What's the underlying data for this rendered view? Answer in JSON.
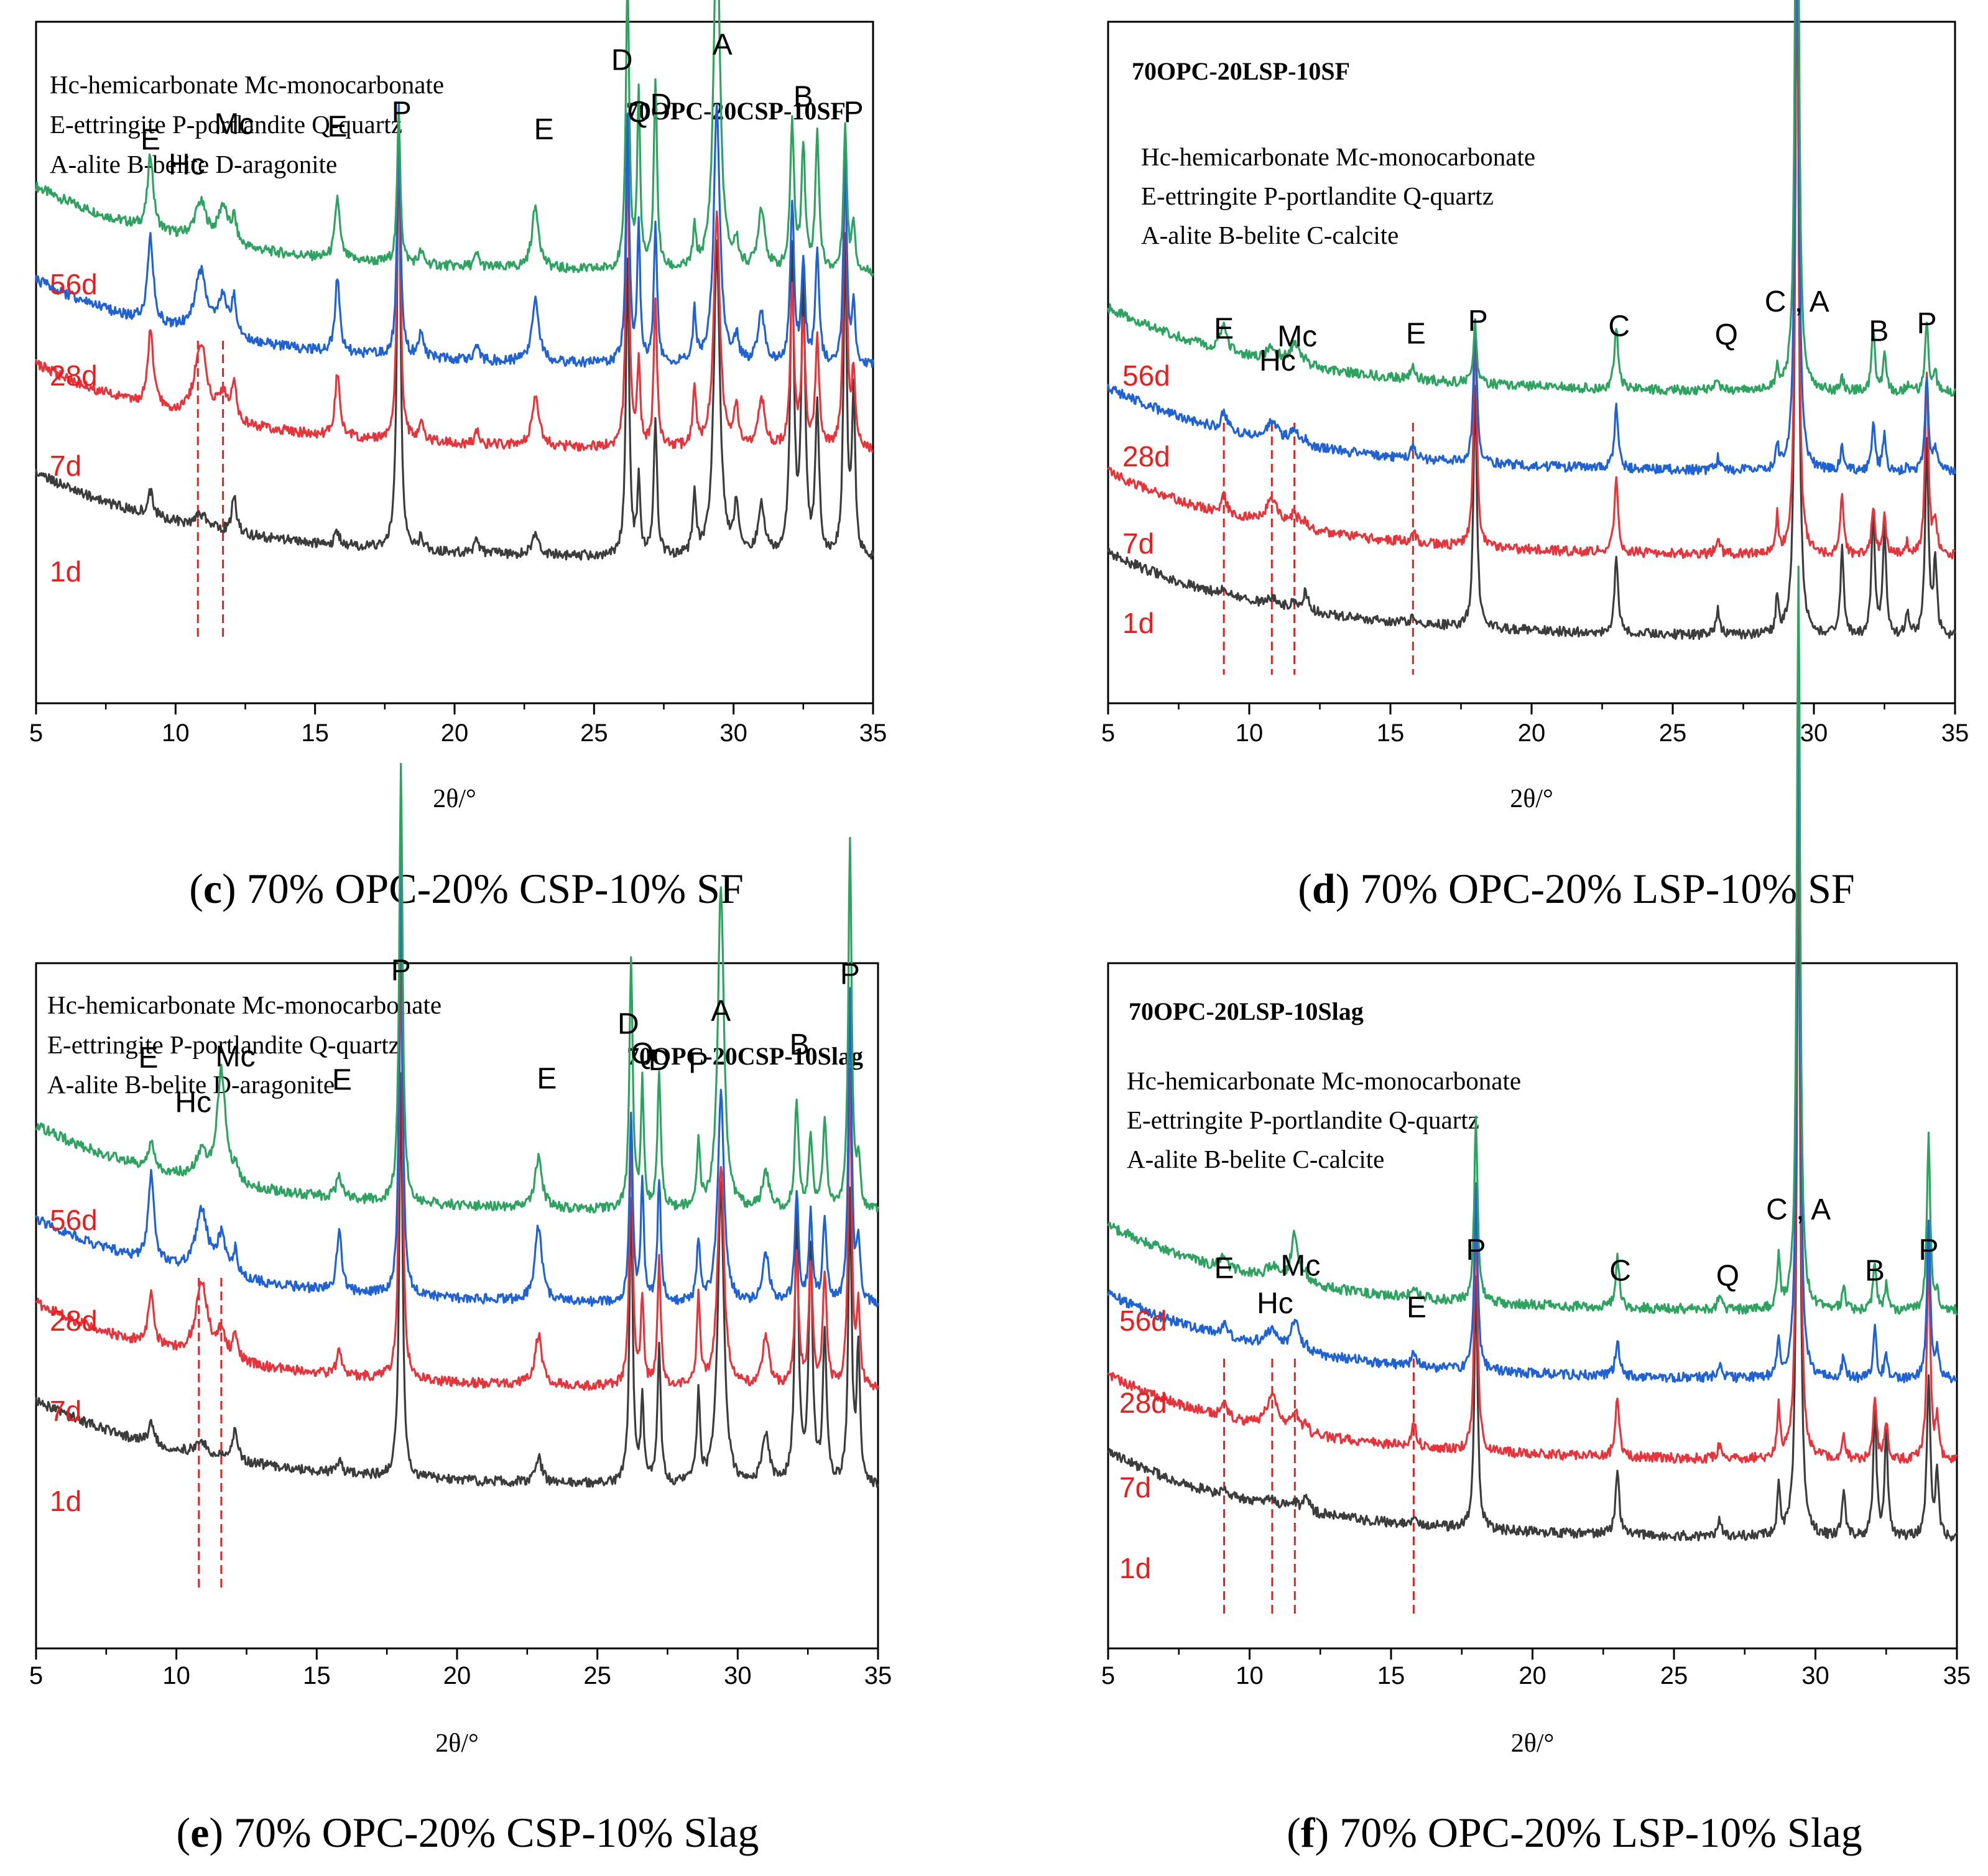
{
  "colors": {
    "d56": "#2ca35f",
    "d28": "#1e62d6",
    "d7": "#e8333a",
    "d1": "#3c3c3c",
    "age_label": "#ee1c1c",
    "marker": "#dd2222"
  },
  "chart_data": [
    {
      "id": "c",
      "type": "line",
      "title": "70OPC-20CSP-10SF",
      "caption": {
        "letter": "c",
        "text": " 70% OPC-20% CSP-10% SF"
      },
      "legend_lines": [
        "Hc-hemicarbonate Mc-monocarbonate",
        "E-ettringite P-portlandite Q-quartz",
        "A-alite B-belite D-aragonite"
      ],
      "xlabel": "2θ/°",
      "ylabel": "",
      "xlim": [
        5,
        35
      ],
      "xticks": [
        "5",
        "10",
        "15",
        "20",
        "25",
        "30",
        "35"
      ],
      "ages": [
        "56d",
        "28d",
        "7d",
        "1d"
      ],
      "markers": [
        10.8,
        11.7
      ],
      "peaks": [
        {
          "x": 9.1,
          "h": [
            12,
            14,
            12,
            4
          ],
          "w": 0.12
        },
        {
          "x": 10.9,
          "h": [
            6,
            10,
            12,
            2
          ],
          "w": 0.25
        },
        {
          "x": 11.7,
          "h": [
            6,
            6,
            4,
            0
          ],
          "w": 0.2
        },
        {
          "x": 12.1,
          "h": [
            4,
            6,
            6,
            6
          ],
          "w": 0.1
        },
        {
          "x": 15.8,
          "h": [
            10,
            12,
            10,
            2
          ],
          "w": 0.1
        },
        {
          "x": 18.0,
          "h": [
            24,
            40,
            52,
            70
          ],
          "w": 0.07
        },
        {
          "x": 18.8,
          "h": [
            2,
            4,
            3,
            2
          ],
          "w": 0.1
        },
        {
          "x": 20.8,
          "h": [
            2,
            2,
            2,
            2
          ],
          "w": 0.1
        },
        {
          "x": 22.9,
          "h": [
            10,
            10,
            8,
            3
          ],
          "w": 0.15
        },
        {
          "x": 26.2,
          "h": [
            48,
            40,
            48,
            48
          ],
          "w": 0.07
        },
        {
          "x": 26.6,
          "h": [
            28,
            22,
            14,
            12
          ],
          "w": 0.06
        },
        {
          "x": 27.2,
          "h": [
            30,
            22,
            24,
            22
          ],
          "w": 0.07
        },
        {
          "x": 28.6,
          "h": [
            6,
            8,
            10,
            10
          ],
          "w": 0.07
        },
        {
          "x": 29.4,
          "h": [
            60,
            42,
            38,
            50
          ],
          "w": 0.13
        },
        {
          "x": 30.1,
          "h": [
            4,
            4,
            6,
            8
          ],
          "w": 0.1
        },
        {
          "x": 31.0,
          "h": [
            10,
            8,
            8,
            8
          ],
          "w": 0.15
        },
        {
          "x": 32.1,
          "h": [
            24,
            26,
            26,
            48
          ],
          "w": 0.08
        },
        {
          "x": 32.5,
          "h": [
            20,
            16,
            20,
            44
          ],
          "w": 0.08
        },
        {
          "x": 33.0,
          "h": [
            22,
            18,
            18,
            24
          ],
          "w": 0.08
        },
        {
          "x": 34.0,
          "h": [
            24,
            34,
            48,
            50
          ],
          "w": 0.07
        },
        {
          "x": 34.3,
          "h": [
            8,
            10,
            12,
            26
          ],
          "w": 0.07
        }
      ]
    },
    {
      "id": "d",
      "type": "line",
      "title": "70OPC-20LSP-10SF",
      "caption": {
        "letter": "d",
        "text": " 70% OPC-20% LSP-10% SF"
      },
      "legend_lines": [
        "Hc-hemicarbonate Mc-monocarbonate",
        "E-ettringite P-portlandite Q-quartz",
        "A-alite B-belite C-calcite"
      ],
      "xlabel": "2θ/°",
      "ylabel": "",
      "xlim": [
        5,
        35
      ],
      "xticks": [
        "5",
        "10",
        "15",
        "20",
        "25",
        "30",
        "35"
      ],
      "ages": [
        "56d",
        "28d",
        "7d",
        "1d"
      ],
      "markers": [
        9.1,
        10.8,
        11.6,
        15.8
      ],
      "peaks": [
        {
          "x": 9.1,
          "h": [
            4,
            3,
            3,
            1
          ],
          "w": 0.12
        },
        {
          "x": 10.8,
          "h": [
            2,
            3,
            4,
            1
          ],
          "w": 0.25
        },
        {
          "x": 11.6,
          "h": [
            3,
            2,
            2,
            1
          ],
          "w": 0.2
        },
        {
          "x": 12.0,
          "h": [
            1,
            1,
            1,
            3
          ],
          "w": 0.1
        },
        {
          "x": 15.8,
          "h": [
            2,
            2,
            2,
            1
          ],
          "w": 0.1
        },
        {
          "x": 18.0,
          "h": [
            10,
            24,
            36,
            40
          ],
          "w": 0.07
        },
        {
          "x": 23.0,
          "h": [
            10,
            10,
            12,
            12
          ],
          "w": 0.08
        },
        {
          "x": 26.6,
          "h": [
            2,
            2,
            3,
            4
          ],
          "w": 0.08
        },
        {
          "x": 28.7,
          "h": [
            4,
            4,
            6,
            6
          ],
          "w": 0.06
        },
        {
          "x": 29.4,
          "h": [
            125,
            110,
            100,
            120
          ],
          "w": 0.07
        },
        {
          "x": 31.0,
          "h": [
            2,
            4,
            10,
            14
          ],
          "w": 0.07
        },
        {
          "x": 32.1,
          "h": [
            10,
            8,
            8,
            20
          ],
          "w": 0.07
        },
        {
          "x": 32.5,
          "h": [
            6,
            6,
            6,
            18
          ],
          "w": 0.07
        },
        {
          "x": 33.3,
          "h": [
            1,
            1,
            2,
            4
          ],
          "w": 0.07
        },
        {
          "x": 34.0,
          "h": [
            12,
            16,
            30,
            32
          ],
          "w": 0.07
        },
        {
          "x": 34.3,
          "h": [
            3,
            4,
            6,
            12
          ],
          "w": 0.07
        }
      ]
    },
    {
      "id": "e",
      "type": "line",
      "title": "70OPC-20CSP-10Slag",
      "caption": {
        "letter": "e",
        "text": " 70% OPC-20% CSP-10% Slag"
      },
      "legend_lines": [
        "Hc-hemicarbonate Mc-monocarbonate",
        "E-ettringite P-portlandite Q-quartz",
        "A-alite B-belite D-aragonite"
      ],
      "xlabel": "2θ/°",
      "ylabel": "",
      "xlim": [
        5,
        35
      ],
      "xticks": [
        "5",
        "10",
        "15",
        "20",
        "25",
        "30",
        "35"
      ],
      "ages": [
        "56d",
        "28d",
        "7d",
        "1d"
      ],
      "markers": [
        10.8,
        11.6
      ],
      "peaks": [
        {
          "x": 9.1,
          "h": [
            4,
            14,
            8,
            3
          ],
          "w": 0.12
        },
        {
          "x": 10.9,
          "h": [
            4,
            10,
            12,
            2
          ],
          "w": 0.25
        },
        {
          "x": 11.6,
          "h": [
            18,
            6,
            4,
            0
          ],
          "w": 0.18
        },
        {
          "x": 12.1,
          "h": [
            2,
            4,
            4,
            5
          ],
          "w": 0.1
        },
        {
          "x": 15.8,
          "h": [
            4,
            10,
            4,
            2
          ],
          "w": 0.1
        },
        {
          "x": 18.0,
          "h": [
            70,
            70,
            70,
            65
          ],
          "w": 0.07
        },
        {
          "x": 22.9,
          "h": [
            8,
            12,
            8,
            4
          ],
          "w": 0.15
        },
        {
          "x": 26.2,
          "h": [
            40,
            30,
            40,
            46
          ],
          "w": 0.07
        },
        {
          "x": 26.6,
          "h": [
            20,
            20,
            14,
            14
          ],
          "w": 0.06
        },
        {
          "x": 27.2,
          "h": [
            22,
            20,
            20,
            22
          ],
          "w": 0.07
        },
        {
          "x": 28.6,
          "h": [
            10,
            10,
            14,
            14
          ],
          "w": 0.07
        },
        {
          "x": 29.4,
          "h": [
            52,
            34,
            36,
            48
          ],
          "w": 0.13
        },
        {
          "x": 31.0,
          "h": [
            6,
            8,
            8,
            8
          ],
          "w": 0.15
        },
        {
          "x": 32.1,
          "h": [
            18,
            18,
            22,
            44
          ],
          "w": 0.08
        },
        {
          "x": 32.6,
          "h": [
            12,
            14,
            20,
            38
          ],
          "w": 0.08
        },
        {
          "x": 33.1,
          "h": [
            14,
            14,
            18,
            24
          ],
          "w": 0.08
        },
        {
          "x": 34.0,
          "h": [
            60,
            50,
            50,
            46
          ],
          "w": 0.07
        },
        {
          "x": 34.3,
          "h": [
            8,
            10,
            12,
            22
          ],
          "w": 0.07
        }
      ]
    },
    {
      "id": "f",
      "type": "line",
      "title": "70OPC-20LSP-10Slag",
      "caption": {
        "letter": "f",
        "text": " 70% OPC-20% LSP-10% Slag"
      },
      "legend_lines": [
        "Hc-hemicarbonate Mc-monocarbonate",
        "E-ettringite P-portlandite Q-quartz",
        "A-alite B-belite C-calcite"
      ],
      "xlabel": "2θ/°",
      "ylabel": "",
      "xlim": [
        5,
        35
      ],
      "xticks": [
        "5",
        "10",
        "15",
        "20",
        "25",
        "30",
        "35"
      ],
      "ages": [
        "56d",
        "28d",
        "7d",
        "1d"
      ],
      "markers": [
        9.1,
        10.8,
        11.6,
        15.8
      ],
      "peaks": [
        {
          "x": 9.1,
          "h": [
            2,
            2,
            2,
            1
          ],
          "w": 0.12
        },
        {
          "x": 10.8,
          "h": [
            2,
            3,
            5,
            1
          ],
          "w": 0.25
        },
        {
          "x": 11.6,
          "h": [
            8,
            5,
            3,
            1
          ],
          "w": 0.15
        },
        {
          "x": 12.0,
          "h": [
            1,
            1,
            1,
            3
          ],
          "w": 0.1
        },
        {
          "x": 15.8,
          "h": [
            2,
            2,
            4,
            1
          ],
          "w": 0.1
        },
        {
          "x": 18.0,
          "h": [
            30,
            30,
            38,
            40
          ],
          "w": 0.07
        },
        {
          "x": 23.0,
          "h": [
            8,
            6,
            10,
            10
          ],
          "w": 0.08
        },
        {
          "x": 26.6,
          "h": [
            2,
            2,
            2,
            3
          ],
          "w": 0.08
        },
        {
          "x": 28.7,
          "h": [
            8,
            6,
            8,
            8
          ],
          "w": 0.06
        },
        {
          "x": 29.4,
          "h": [
            120,
            110,
            110,
            115
          ],
          "w": 0.07
        },
        {
          "x": 31.0,
          "h": [
            4,
            4,
            4,
            8
          ],
          "w": 0.07
        },
        {
          "x": 32.1,
          "h": [
            8,
            8,
            10,
            20
          ],
          "w": 0.07
        },
        {
          "x": 32.5,
          "h": [
            4,
            4,
            6,
            16
          ],
          "w": 0.07
        },
        {
          "x": 34.0,
          "h": [
            28,
            26,
            34,
            26
          ],
          "w": 0.07
        },
        {
          "x": 34.3,
          "h": [
            3,
            4,
            6,
            10
          ],
          "w": 0.07
        }
      ]
    }
  ],
  "annotations": {
    "c": [
      {
        "t": "E",
        "x": 9.1,
        "y": 11.4
      },
      {
        "t": "Mc",
        "x": 12.1,
        "y": 12.6
      },
      {
        "t": "Hc",
        "x": 10.4,
        "y": 9.5
      },
      {
        "t": "E",
        "x": 15.8,
        "y": 12.4
      },
      {
        "t": "P",
        "x": 18.1,
        "y": 13.5
      },
      {
        "t": "E",
        "x": 23.2,
        "y": 12.2
      },
      {
        "t": "D",
        "x": 26.0,
        "y": 17.5
      },
      {
        "t": "Q",
        "x": 26.6,
        "y": 13.5
      },
      {
        "t": "D",
        "x": 27.4,
        "y": 14.1
      },
      {
        "t": "A",
        "x": 29.6,
        "y": 18.7
      },
      {
        "t": "B",
        "x": 32.5,
        "y": 14.7
      },
      {
        "t": "P",
        "x": 34.3,
        "y": 13.5
      }
    ],
    "d": [
      {
        "t": "C , A",
        "x": 29.4,
        "y": 8.3
      },
      {
        "t": "E",
        "x": 9.1,
        "y": 6.2
      },
      {
        "t": "Mc",
        "x": 11.7,
        "y": 5.6
      },
      {
        "t": "E",
        "x": 15.9,
        "y": 5.8
      },
      {
        "t": "P",
        "x": 18.1,
        "y": 6.8
      },
      {
        "t": "C",
        "x": 23.1,
        "y": 6.4
      },
      {
        "t": "Q",
        "x": 26.9,
        "y": 5.7
      },
      {
        "t": "B",
        "x": 32.3,
        "y": 6.0
      },
      {
        "t": "P",
        "x": 34.0,
        "y": 6.6
      },
      {
        "t": "Hc",
        "x": 11.0,
        "y": 3.7
      }
    ],
    "e": [
      {
        "t": "P",
        "x": 18.0,
        "y": 19.7
      },
      {
        "t": "D",
        "x": 26.1,
        "y": 15.6
      },
      {
        "t": "A",
        "x": 29.4,
        "y": 16.6
      },
      {
        "t": "P",
        "x": 34.0,
        "y": 19.4
      },
      {
        "t": "E",
        "x": 9.0,
        "y": 13.0
      },
      {
        "t": "Mc",
        "x": 12.1,
        "y": 13.1
      },
      {
        "t": "Q",
        "x": 26.6,
        "y": 13.3
      },
      {
        "t": "D",
        "x": 27.2,
        "y": 12.8
      },
      {
        "t": "P",
        "x": 28.6,
        "y": 12.6
      },
      {
        "t": "B",
        "x": 32.2,
        "y": 14.0
      },
      {
        "t": "E",
        "x": 15.9,
        "y": 11.3
      },
      {
        "t": "E",
        "x": 23.2,
        "y": 11.4
      },
      {
        "t": "Hc",
        "x": 10.6,
        "y": 9.6
      }
    ],
    "f": [
      {
        "t": "C , A",
        "x": 29.4,
        "y": 9.0
      },
      {
        "t": "P",
        "x": 18.0,
        "y": 5.9
      },
      {
        "t": "P",
        "x": 34.0,
        "y": 5.9
      },
      {
        "t": "E",
        "x": 9.1,
        "y": 4.5
      },
      {
        "t": "Mc",
        "x": 11.8,
        "y": 4.7
      },
      {
        "t": "C",
        "x": 23.1,
        "y": 4.3
      },
      {
        "t": "Q",
        "x": 26.9,
        "y": 3.9
      },
      {
        "t": "B",
        "x": 32.1,
        "y": 4.3
      },
      {
        "t": "Hc",
        "x": 10.9,
        "y": 1.8
      },
      {
        "t": "E",
        "x": 15.9,
        "y": 1.5
      }
    ]
  }
}
